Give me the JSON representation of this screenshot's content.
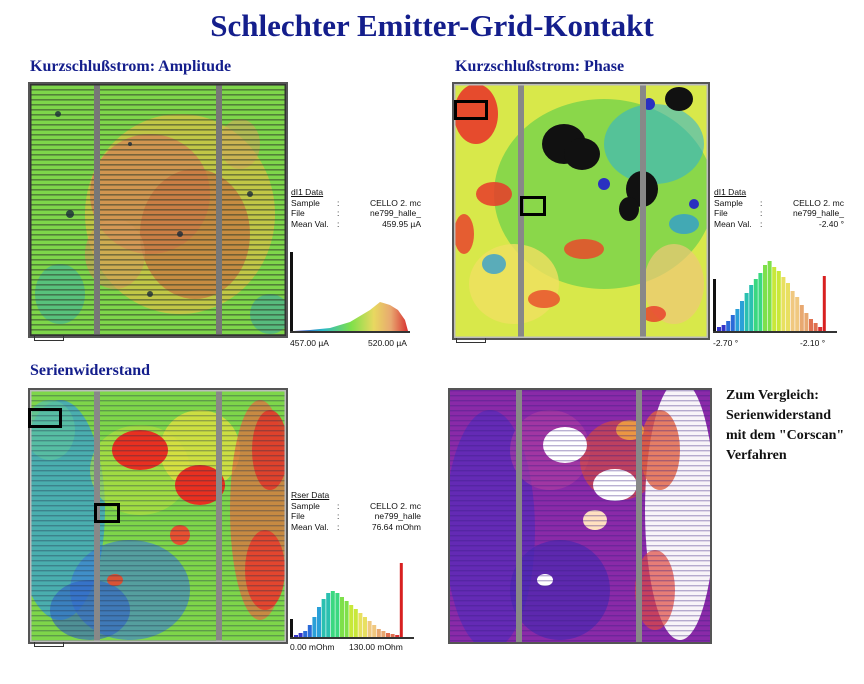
{
  "title": "Schlechter Emitter-Grid-Kontakt",
  "panels": {
    "amplitude": {
      "title": "Kurzschlußstrom: Amplitude",
      "info": {
        "header": "dI1 Data",
        "sample": "CELLO 2. mc",
        "file": "ne799_halle_",
        "mean": "459.95  µA"
      },
      "range_min": "457.00 µA",
      "range_max": "520.00 µA",
      "hist_colors": [
        "#2a2ab4",
        "#3355d0",
        "#3a8ae0",
        "#2ab8c8",
        "#3ad890",
        "#7ee04a",
        "#c8e83a",
        "#f0e05a",
        "#f0c880",
        "#e8a870",
        "#e07050",
        "#d83030"
      ]
    },
    "phase": {
      "title": "Kurzschlußstrom: Phase",
      "info": {
        "header": "dI1 Data",
        "sample": "CELLO 2. mc",
        "file": "ne799_halle_",
        "mean": "-2.40  °"
      },
      "range_min": "-2.70 °",
      "range_max": "-2.10 °"
    },
    "rser": {
      "title": "Serienwiderstand",
      "info": {
        "header": "Rser Data",
        "sample": "CELLO 2. mc",
        "file": "ne799_halle",
        "mean": "76.64  mOhm"
      },
      "range_min": "0.00 mOhm",
      "range_max": "130.00 mOhm"
    },
    "corescan": {
      "note": [
        "Zum Vergleich:",
        "Serienwiderstand",
        "mit dem \"Corscan\"",
        "Verfahren"
      ]
    }
  },
  "labels": {
    "sample_key": "Sample",
    "file_key": "File",
    "mean_key": "Mean Val.",
    "colon": ":"
  }
}
